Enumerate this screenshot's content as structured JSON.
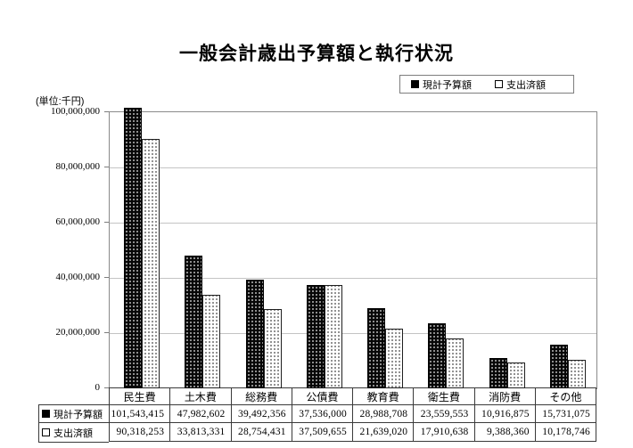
{
  "title": "一般会計歳出予算額と執行状況",
  "unit_label": "(単位:千円)",
  "chart_data": {
    "type": "bar",
    "title": "一般会計歳出予算額と執行状況",
    "categories": [
      "民生費",
      "土木費",
      "総務費",
      "公債費",
      "教育費",
      "衛生費",
      "消防費",
      "その他"
    ],
    "series": [
      {
        "name": "現計予算額",
        "marker": "filled-square",
        "fill": "#000000",
        "values": [
          101543415,
          47982602,
          39492356,
          37536000,
          28988708,
          23559553,
          10916875,
          15731075
        ]
      },
      {
        "name": "支出済額",
        "marker": "open-square",
        "fill": "#ffffff",
        "values": [
          90318253,
          33813331,
          28754431,
          37509655,
          21639020,
          17910638,
          9388360,
          10178746
        ]
      }
    ],
    "ylabel": "(単位:千円)",
    "ylim": [
      0,
      100000000
    ],
    "ytick_interval": 20000000,
    "ytick_labels": [
      "100,000,000",
      "80,000,000",
      "60,000,000",
      "40,000,000",
      "20,000,000",
      "0"
    ],
    "grid": true,
    "legend_position": "top-right",
    "data_table_shown": true,
    "colors": {
      "budget_bar": "#000000",
      "spent_bar": "#ffffff",
      "gridline": "#c4c4c4",
      "plot_border": "#8a8a8a",
      "table_border": "#3a3a3a"
    }
  }
}
